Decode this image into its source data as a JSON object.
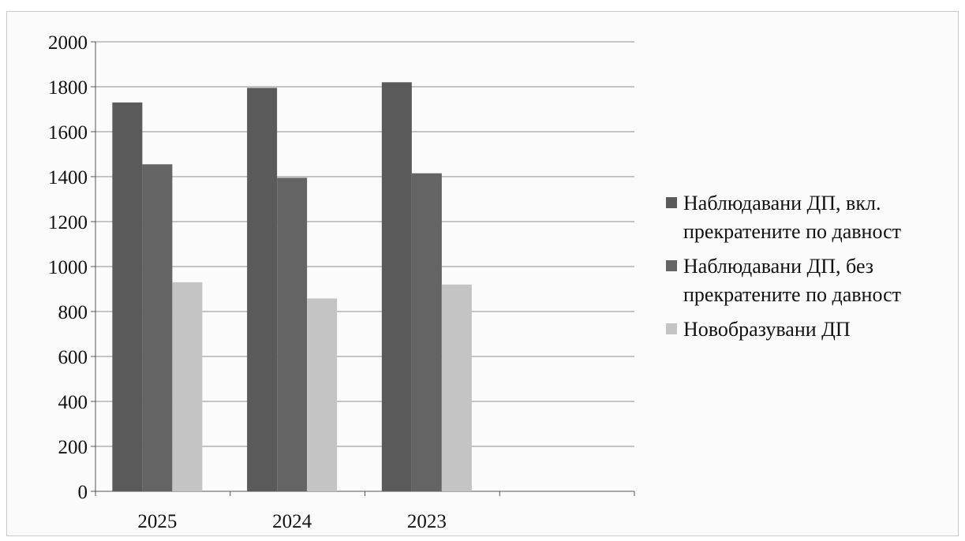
{
  "chart_data": {
    "type": "bar",
    "title": "",
    "xlabel": "",
    "ylabel": "",
    "ylim": [
      0,
      2000
    ],
    "yticks": [
      0,
      200,
      400,
      600,
      800,
      1000,
      1200,
      1400,
      1600,
      1800,
      2000
    ],
    "grid": true,
    "legend_position": "right",
    "categories": [
      "2025",
      "2024",
      "2023",
      ""
    ],
    "series": [
      {
        "name": "Наблюдавани ДП, вкл. прекратените по давност",
        "name_lines": [
          "Наблюдавани ДП, вкл.",
          "прекратените по давност"
        ],
        "color": "#5a5a5a",
        "values": [
          1730,
          1795,
          1820,
          null
        ]
      },
      {
        "name": "Наблюдавани ДП, без прекратените по давност",
        "name_lines": [
          "Наблюдавани ДП, без",
          "прекратените по давност"
        ],
        "color": "#646464",
        "values": [
          1455,
          1395,
          1415,
          null
        ]
      },
      {
        "name": "Новобразувани ДП",
        "name_lines": [
          "Новобразувани ДП"
        ],
        "color": "#c4c4c4",
        "values": [
          930,
          858,
          920,
          null
        ]
      }
    ]
  }
}
